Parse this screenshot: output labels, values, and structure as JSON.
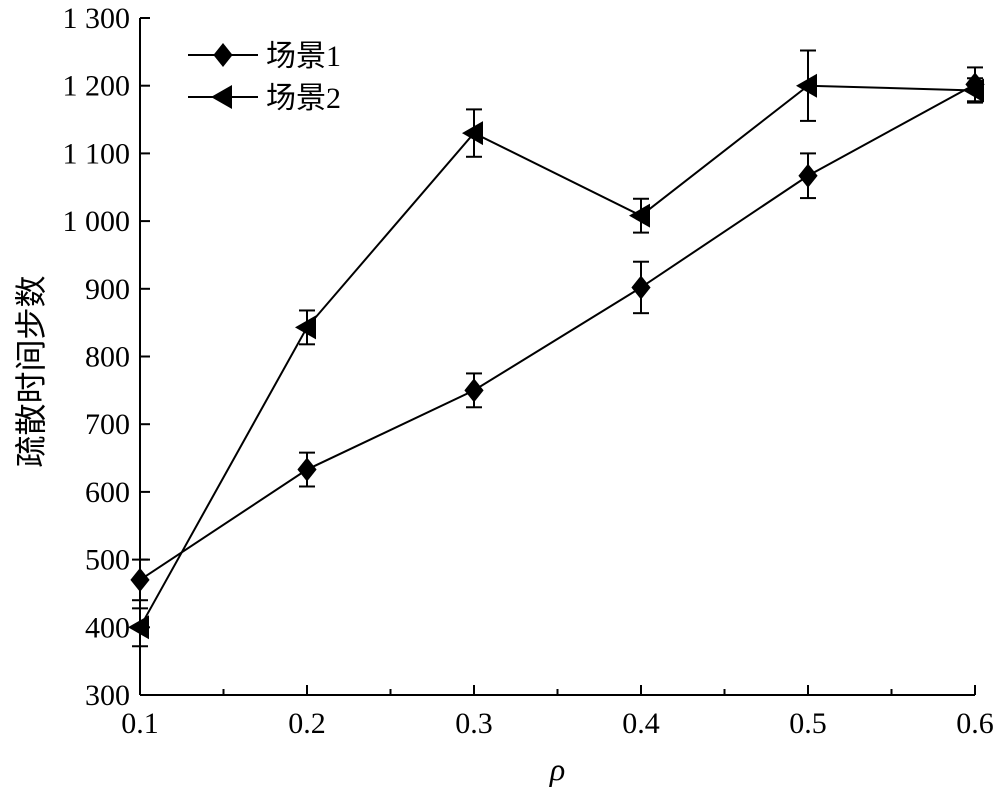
{
  "chart_data": {
    "type": "line",
    "xlabel": "ρ",
    "ylabel": "疏散时间步数",
    "xlim": [
      0.1,
      0.6
    ],
    "ylim": [
      300,
      1300
    ],
    "x_ticks": [
      0.1,
      0.2,
      0.3,
      0.4,
      0.5,
      0.6
    ],
    "x_tick_labels": [
      "0.1",
      "0.2",
      "0.3",
      "0.4",
      "0.5",
      "0.6"
    ],
    "y_ticks": [
      300,
      400,
      500,
      600,
      700,
      800,
      900,
      1000,
      1100,
      1200,
      1300
    ],
    "y_tick_labels": [
      "300",
      "400",
      "500",
      "600",
      "700",
      "800",
      "900",
      "1 000",
      "1 100",
      "1 200",
      "1 300"
    ],
    "grid": false,
    "legend_position": "top-left",
    "series": [
      {
        "name": "场景1",
        "marker": "diamond",
        "color": "#000000",
        "x": [
          0.1,
          0.2,
          0.3,
          0.4,
          0.5,
          0.6
        ],
        "y": [
          470,
          633,
          750,
          902,
          1067,
          1202
        ],
        "error": [
          30,
          25,
          25,
          38,
          33,
          25
        ]
      },
      {
        "name": "场景2",
        "marker": "triangle-left",
        "color": "#000000",
        "x": [
          0.1,
          0.2,
          0.3,
          0.4,
          0.5,
          0.6
        ],
        "y": [
          400,
          843,
          1130,
          1008,
          1200,
          1193
        ],
        "error": [
          28,
          25,
          35,
          25,
          52,
          18
        ]
      }
    ]
  }
}
